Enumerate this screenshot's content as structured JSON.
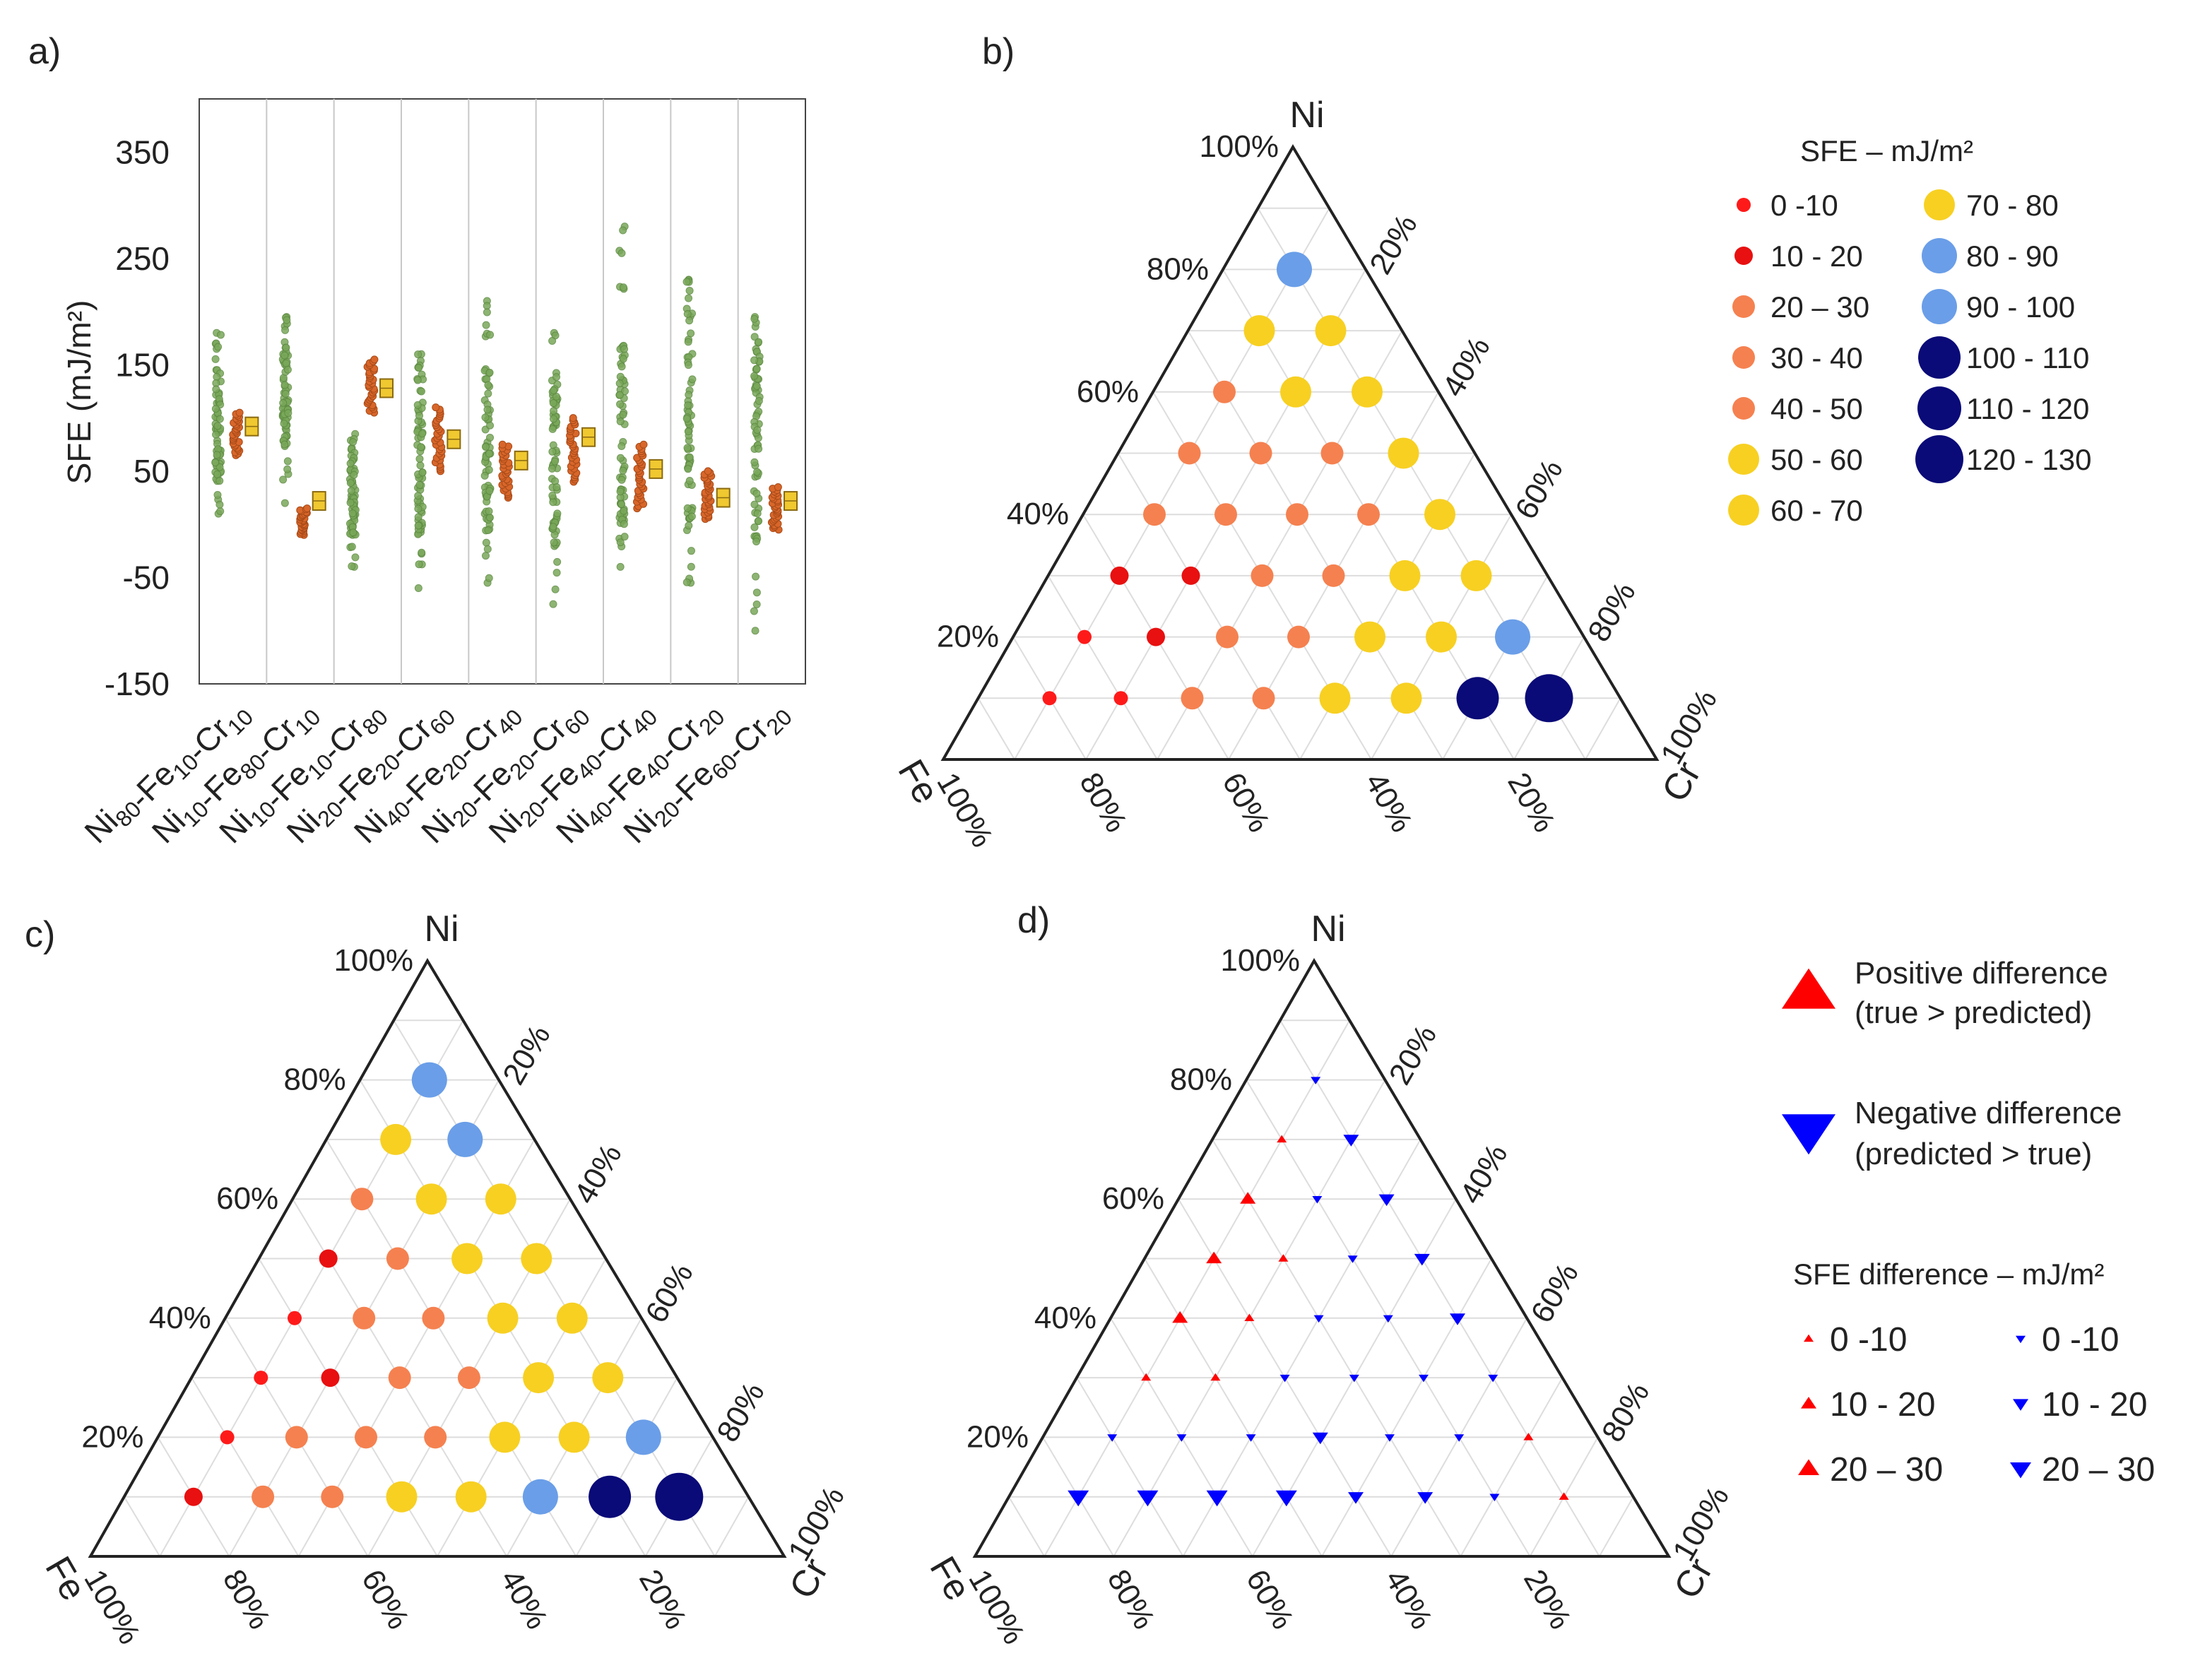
{
  "panels": {
    "a": {
      "label": "a)"
    },
    "b": {
      "label": "b)"
    },
    "c": {
      "label": "c)"
    },
    "d": {
      "label": "d)"
    }
  },
  "chart_data": [
    {
      "id": "a",
      "type": "scatter",
      "subtype": "strip-plot",
      "ylabel": "SFE (mJ/m²)",
      "ylim": [
        -150,
        400
      ],
      "yticks": [
        -150,
        -50,
        50,
        150,
        250,
        350
      ],
      "categories": [
        {
          "label": "Ni80-Fe10-Cr10",
          "parts": [
            [
              "Ni",
              "80"
            ],
            [
              "Fe",
              "10"
            ],
            [
              "Cr",
              "10"
            ]
          ]
        },
        {
          "label": "Ni10-Fe80-Cr10",
          "parts": [
            [
              "Ni",
              "10"
            ],
            [
              "Fe",
              "80"
            ],
            [
              "Cr",
              "10"
            ]
          ]
        },
        {
          "label": "Ni10-Fe10-Cr80",
          "parts": [
            [
              "Ni",
              "10"
            ],
            [
              "Fe",
              "10"
            ],
            [
              "Cr",
              "80"
            ]
          ]
        },
        {
          "label": "Ni20-Fe20-Cr60",
          "parts": [
            [
              "Ni",
              "20"
            ],
            [
              "Fe",
              "20"
            ],
            [
              "Cr",
              "60"
            ]
          ]
        },
        {
          "label": "Ni40-Fe20-Cr40",
          "parts": [
            [
              "Ni",
              "40"
            ],
            [
              "Fe",
              "20"
            ],
            [
              "Cr",
              "40"
            ]
          ]
        },
        {
          "label": "Ni20-Fe20-Cr60",
          "parts": [
            [
              "Ni",
              "20"
            ],
            [
              "Fe",
              "20"
            ],
            [
              "Cr",
              "60"
            ]
          ]
        },
        {
          "label": "Ni20-Fe40-Cr40",
          "parts": [
            [
              "Ni",
              "20"
            ],
            [
              "Fe",
              "40"
            ],
            [
              "Cr",
              "40"
            ]
          ]
        },
        {
          "label": "Ni40-Fe40-Cr20",
          "parts": [
            [
              "Ni",
              "40"
            ],
            [
              "Fe",
              "40"
            ],
            [
              "Cr",
              "20"
            ]
          ]
        },
        {
          "label": "Ni20-Fe60-Cr20",
          "parts": [
            [
              "Ni",
              "20"
            ],
            [
              "Fe",
              "60"
            ],
            [
              "Cr",
              "20"
            ]
          ]
        }
      ],
      "series": [
        {
          "name": "green",
          "color": "#7aa85a",
          "min": [
            10,
            20,
            -40,
            -60,
            -55,
            -75,
            -40,
            -55,
            -100
          ],
          "max": [
            180,
            195,
            85,
            160,
            210,
            180,
            280,
            230,
            195
          ],
          "core": [
            [
              40,
              150
            ],
            [
              70,
              170
            ],
            [
              -10,
              70
            ],
            [
              -20,
              140
            ],
            [
              -10,
              150
            ],
            [
              -20,
              130
            ],
            [
              0,
              170
            ],
            [
              -20,
              200
            ],
            [
              -20,
              170
            ]
          ]
        },
        {
          "name": "orange",
          "color": "#d8662a",
          "min": [
            65,
            -10,
            105,
            50,
            25,
            40,
            15,
            5,
            -5
          ],
          "max": [
            105,
            15,
            155,
            110,
            75,
            100,
            75,
            50,
            35
          ]
        },
        {
          "name": "yellow",
          "color": "#f0c830",
          "value": [
            92,
            22,
            128,
            80,
            60,
            82,
            52,
            25,
            22
          ]
        }
      ]
    },
    {
      "id": "b",
      "type": "scatter",
      "subtype": "ternary",
      "vertices": {
        "top": "Ni",
        "left": "Fe",
        "right": "Cr"
      },
      "ticks": [
        "20%",
        "40%",
        "60%",
        "80%",
        "100%"
      ],
      "points": [
        {
          "ni": 80,
          "fe": 10,
          "v": 85
        },
        {
          "ni": 70,
          "fe": 20,
          "v": 55
        },
        {
          "ni": 70,
          "fe": 10,
          "v": 62
        },
        {
          "ni": 60,
          "fe": 30,
          "v": 45
        },
        {
          "ni": 60,
          "fe": 20,
          "v": 58
        },
        {
          "ni": 60,
          "fe": 10,
          "v": 65
        },
        {
          "ni": 50,
          "fe": 40,
          "v": 38
        },
        {
          "ni": 50,
          "fe": 30,
          "v": 35
        },
        {
          "ni": 50,
          "fe": 20,
          "v": 45
        },
        {
          "ni": 50,
          "fe": 10,
          "v": 55
        },
        {
          "ni": 40,
          "fe": 50,
          "v": 25
        },
        {
          "ni": 40,
          "fe": 40,
          "v": 25
        },
        {
          "ni": 40,
          "fe": 30,
          "v": 35
        },
        {
          "ni": 40,
          "fe": 20,
          "v": 45
        },
        {
          "ni": 40,
          "fe": 10,
          "v": 65
        },
        {
          "ni": 30,
          "fe": 60,
          "v": 15
        },
        {
          "ni": 30,
          "fe": 50,
          "v": 15
        },
        {
          "ni": 30,
          "fe": 40,
          "v": 25
        },
        {
          "ni": 30,
          "fe": 30,
          "v": 35
        },
        {
          "ni": 30,
          "fe": 20,
          "v": 55
        },
        {
          "ni": 30,
          "fe": 10,
          "v": 65
        },
        {
          "ni": 20,
          "fe": 70,
          "v": 5
        },
        {
          "ni": 20,
          "fe": 60,
          "v": 15
        },
        {
          "ni": 20,
          "fe": 50,
          "v": 25
        },
        {
          "ni": 20,
          "fe": 40,
          "v": 35
        },
        {
          "ni": 20,
          "fe": 30,
          "v": 55
        },
        {
          "ni": 20,
          "fe": 20,
          "v": 65
        },
        {
          "ni": 20,
          "fe": 10,
          "v": 85
        },
        {
          "ni": 10,
          "fe": 80,
          "v": 5
        },
        {
          "ni": 10,
          "fe": 70,
          "v": 5
        },
        {
          "ni": 10,
          "fe": 60,
          "v": 25
        },
        {
          "ni": 10,
          "fe": 50,
          "v": 35
        },
        {
          "ni": 10,
          "fe": 40,
          "v": 55
        },
        {
          "ni": 10,
          "fe": 30,
          "v": 65
        },
        {
          "ni": 10,
          "fe": 20,
          "v": 105
        },
        {
          "ni": 10,
          "fe": 10,
          "v": 125
        }
      ],
      "legend": {
        "title": "SFE – mJ/m²",
        "items": [
          {
            "label": "0 -10",
            "bin": 0
          },
          {
            "label": "10 - 20",
            "bin": 1
          },
          {
            "label": "20 – 30",
            "bin": 2
          },
          {
            "label": "30 - 40",
            "bin": 3
          },
          {
            "label": "40 - 50",
            "bin": 4
          },
          {
            "label": "50 - 60",
            "bin": 5
          },
          {
            "label": "60 - 70",
            "bin": 6
          },
          {
            "label": "70 - 80",
            "bin": 7
          },
          {
            "label": "80 - 90",
            "bin": 8
          },
          {
            "label": "90 - 100",
            "bin": 9
          },
          {
            "label": "100 - 110",
            "bin": 10
          },
          {
            "label": "110 - 120",
            "bin": 11
          },
          {
            "label": "120 - 130",
            "bin": 12
          }
        ]
      }
    },
    {
      "id": "c",
      "type": "scatter",
      "subtype": "ternary",
      "vertices": {
        "top": "Ni",
        "left": "Fe",
        "right": "Cr"
      },
      "ticks": [
        "20%",
        "40%",
        "60%",
        "80%",
        "100%"
      ],
      "points": [
        {
          "ni": 80,
          "fe": 10,
          "v": 85
        },
        {
          "ni": 70,
          "fe": 20,
          "v": 65
        },
        {
          "ni": 70,
          "fe": 10,
          "v": 85
        },
        {
          "ni": 60,
          "fe": 30,
          "v": 35
        },
        {
          "ni": 60,
          "fe": 20,
          "v": 55
        },
        {
          "ni": 60,
          "fe": 10,
          "v": 65
        },
        {
          "ni": 50,
          "fe": 40,
          "v": 15
        },
        {
          "ni": 50,
          "fe": 30,
          "v": 35
        },
        {
          "ni": 50,
          "fe": 20,
          "v": 55
        },
        {
          "ni": 50,
          "fe": 10,
          "v": 65
        },
        {
          "ni": 40,
          "fe": 50,
          "v": 5
        },
        {
          "ni": 40,
          "fe": 40,
          "v": 25
        },
        {
          "ni": 40,
          "fe": 30,
          "v": 35
        },
        {
          "ni": 40,
          "fe": 20,
          "v": 55
        },
        {
          "ni": 40,
          "fe": 10,
          "v": 65
        },
        {
          "ni": 30,
          "fe": 60,
          "v": 5
        },
        {
          "ni": 30,
          "fe": 50,
          "v": 15
        },
        {
          "ni": 30,
          "fe": 40,
          "v": 35
        },
        {
          "ni": 30,
          "fe": 30,
          "v": 45
        },
        {
          "ni": 30,
          "fe": 20,
          "v": 55
        },
        {
          "ni": 30,
          "fe": 10,
          "v": 65
        },
        {
          "ni": 20,
          "fe": 70,
          "v": 5
        },
        {
          "ni": 20,
          "fe": 60,
          "v": 25
        },
        {
          "ni": 20,
          "fe": 50,
          "v": 35
        },
        {
          "ni": 20,
          "fe": 40,
          "v": 45
        },
        {
          "ni": 20,
          "fe": 30,
          "v": 55
        },
        {
          "ni": 20,
          "fe": 20,
          "v": 65
        },
        {
          "ni": 20,
          "fe": 10,
          "v": 85
        },
        {
          "ni": 10,
          "fe": 80,
          "v": 15
        },
        {
          "ni": 10,
          "fe": 70,
          "v": 35
        },
        {
          "ni": 10,
          "fe": 60,
          "v": 45
        },
        {
          "ni": 10,
          "fe": 50,
          "v": 55
        },
        {
          "ni": 10,
          "fe": 40,
          "v": 65
        },
        {
          "ni": 10,
          "fe": 30,
          "v": 85
        },
        {
          "ni": 10,
          "fe": 20,
          "v": 105
        },
        {
          "ni": 10,
          "fe": 10,
          "v": 125
        }
      ]
    },
    {
      "id": "d",
      "type": "scatter",
      "subtype": "ternary-difference",
      "vertices": {
        "top": "Ni",
        "left": "Fe",
        "right": "Cr"
      },
      "ticks": [
        "20%",
        "40%",
        "60%",
        "80%",
        "100%"
      ],
      "points": [
        {
          "ni": 80,
          "fe": 10,
          "sign": "neg",
          "bin": 0
        },
        {
          "ni": 70,
          "fe": 20,
          "sign": "pos",
          "bin": 0
        },
        {
          "ni": 70,
          "fe": 10,
          "sign": "neg",
          "bin": 1
        },
        {
          "ni": 60,
          "fe": 30,
          "sign": "pos",
          "bin": 1
        },
        {
          "ni": 60,
          "fe": 20,
          "sign": "neg",
          "bin": 0
        },
        {
          "ni": 60,
          "fe": 10,
          "sign": "neg",
          "bin": 1
        },
        {
          "ni": 50,
          "fe": 40,
          "sign": "pos",
          "bin": 1
        },
        {
          "ni": 50,
          "fe": 30,
          "sign": "pos",
          "bin": 0
        },
        {
          "ni": 50,
          "fe": 20,
          "sign": "neg",
          "bin": 0
        },
        {
          "ni": 50,
          "fe": 10,
          "sign": "neg",
          "bin": 1
        },
        {
          "ni": 40,
          "fe": 50,
          "sign": "pos",
          "bin": 1
        },
        {
          "ni": 40,
          "fe": 40,
          "sign": "pos",
          "bin": 0
        },
        {
          "ni": 40,
          "fe": 30,
          "sign": "neg",
          "bin": 0
        },
        {
          "ni": 40,
          "fe": 20,
          "sign": "neg",
          "bin": 0
        },
        {
          "ni": 40,
          "fe": 10,
          "sign": "neg",
          "bin": 1
        },
        {
          "ni": 30,
          "fe": 60,
          "sign": "pos",
          "bin": 0
        },
        {
          "ni": 30,
          "fe": 50,
          "sign": "pos",
          "bin": 0
        },
        {
          "ni": 30,
          "fe": 40,
          "sign": "neg",
          "bin": 0
        },
        {
          "ni": 30,
          "fe": 30,
          "sign": "neg",
          "bin": 0
        },
        {
          "ni": 30,
          "fe": 20,
          "sign": "neg",
          "bin": 0
        },
        {
          "ni": 30,
          "fe": 10,
          "sign": "neg",
          "bin": 0
        },
        {
          "ni": 20,
          "fe": 70,
          "sign": "neg",
          "bin": 0
        },
        {
          "ni": 20,
          "fe": 60,
          "sign": "neg",
          "bin": 0
        },
        {
          "ni": 20,
          "fe": 50,
          "sign": "neg",
          "bin": 0
        },
        {
          "ni": 20,
          "fe": 40,
          "sign": "neg",
          "bin": 1
        },
        {
          "ni": 20,
          "fe": 30,
          "sign": "neg",
          "bin": 0
        },
        {
          "ni": 20,
          "fe": 20,
          "sign": "neg",
          "bin": 0
        },
        {
          "ni": 20,
          "fe": 10,
          "sign": "pos",
          "bin": 0
        },
        {
          "ni": 10,
          "fe": 80,
          "sign": "neg",
          "bin": 2
        },
        {
          "ni": 10,
          "fe": 70,
          "sign": "neg",
          "bin": 2
        },
        {
          "ni": 10,
          "fe": 60,
          "sign": "neg",
          "bin": 2
        },
        {
          "ni": 10,
          "fe": 50,
          "sign": "neg",
          "bin": 2
        },
        {
          "ni": 10,
          "fe": 40,
          "sign": "neg",
          "bin": 1
        },
        {
          "ni": 10,
          "fe": 30,
          "sign": "neg",
          "bin": 1
        },
        {
          "ni": 10,
          "fe": 20,
          "sign": "neg",
          "bin": 0
        },
        {
          "ni": 10,
          "fe": 10,
          "sign": "pos",
          "bin": 0
        }
      ],
      "legend": {
        "positive": {
          "line1": "Positive difference",
          "line2": "(true > predicted)",
          "color": "#ff0000"
        },
        "negative": {
          "line1": "Negative difference",
          "line2": "(predicted > true)",
          "color": "#0000ff"
        },
        "title": "SFE difference  – mJ/m²",
        "items": [
          "0 -10",
          "10 - 20",
          "20 – 30"
        ]
      }
    }
  ],
  "colors": {
    "bins": [
      "#ff1a1a",
      "#e81010",
      "#f58150",
      "#f58150",
      "#f58150",
      "#f7d022",
      "#f7d022",
      "#f7d022",
      "#6a9ee8",
      "#6a9ee8",
      "#0a0a78",
      "#0a0a78",
      "#0a0a78"
    ],
    "axis": "#222222",
    "grid": "#dddddd"
  }
}
